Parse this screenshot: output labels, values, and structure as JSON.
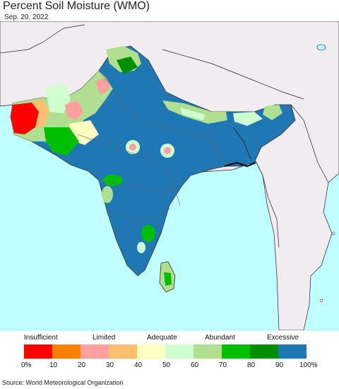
{
  "title": "Percent Soil Moisture (WMO)",
  "date": "Sep. 20, 2022",
  "source": "Source: World Meteorological Organization",
  "legend": {
    "categories": [
      "Insufficient",
      "Limited",
      "Adequate",
      "Abundant",
      "Excessive"
    ],
    "ticks": [
      "0%",
      "10",
      "20",
      "30",
      "40",
      "50",
      "60",
      "70",
      "80",
      "90",
      "100%"
    ],
    "colors": [
      "#ff0000",
      "#ff7f00",
      "#ff9f9f",
      "#ffbf6f",
      "#ffffbf",
      "#cfffcf",
      "#afdf8f",
      "#00bf00",
      "#008f00",
      "#1f77b4"
    ]
  },
  "map": {
    "ocean_color": "#bfffff",
    "land_color": "#f0ecf0",
    "dominant_color": "#1f77b4"
  }
}
